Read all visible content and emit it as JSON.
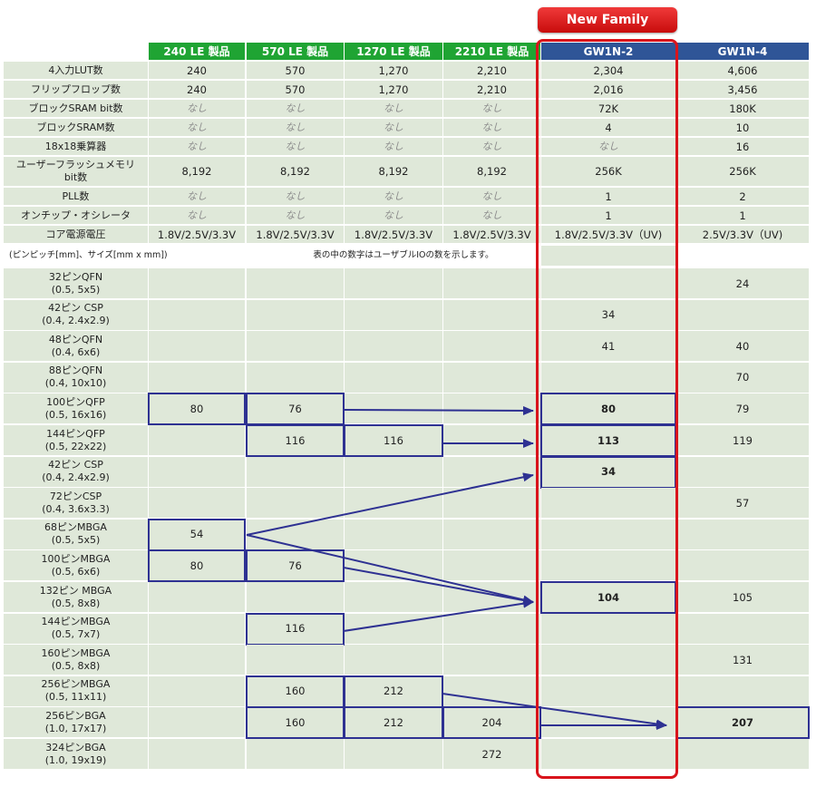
{
  "badge": "New Family",
  "columns": [
    "240 LE 製品",
    "570 LE 製品",
    "1270 LE 製品",
    "2210 LE 製品",
    "GW1N-2",
    "GW1N-4"
  ],
  "spec_rows": [
    {
      "label": "4入力LUT数",
      "values": [
        "240",
        "570",
        "1,270",
        "2,210",
        "2,304",
        "4,606"
      ]
    },
    {
      "label": "フリップフロップ数",
      "values": [
        "240",
        "570",
        "1,270",
        "2,210",
        "2,016",
        "3,456"
      ]
    },
    {
      "label": "ブロックSRAM bit数",
      "values": [
        "なし",
        "なし",
        "なし",
        "なし",
        "72K",
        "180K"
      ]
    },
    {
      "label": "ブロックSRAM数",
      "values": [
        "なし",
        "なし",
        "なし",
        "なし",
        "4",
        "10"
      ]
    },
    {
      "label": "18x18乗算器",
      "values": [
        "なし",
        "なし",
        "なし",
        "なし",
        "なし",
        "16"
      ]
    },
    {
      "label": "ユーザーフラッシュメモリ\nbit数",
      "values": [
        "8,192",
        "8,192",
        "8,192",
        "8,192",
        "256K",
        "256K"
      ]
    },
    {
      "label": "PLL数",
      "values": [
        "なし",
        "なし",
        "なし",
        "なし",
        "1",
        "2"
      ]
    },
    {
      "label": "オンチップ・オシレータ",
      "values": [
        "なし",
        "なし",
        "なし",
        "なし",
        "1",
        "1"
      ]
    },
    {
      "label": "コア電源電圧",
      "values": [
        "1.8V/2.5V/3.3V",
        "1.8V/2.5V/3.3V",
        "1.8V/2.5V/3.3V",
        "1.8V/2.5V/3.3V",
        "1.8V/2.5V/3.3V（UV)",
        "2.5V/3.3V（UV)"
      ]
    }
  ],
  "notes": {
    "left": "(ピンピッチ[mm]、サイズ[mm x mm])",
    "center": "表の中の数字はユーザブルIOの数を示します。"
  },
  "package_rows": [
    {
      "label": "32ピンQFN\n(0.5, 5x5)",
      "values": [
        "",
        "",
        "",
        "",
        "",
        "24"
      ]
    },
    {
      "label": "42ピン CSP\n(0.4, 2.4x2.9)",
      "values": [
        "",
        "",
        "",
        "",
        "34",
        ""
      ]
    },
    {
      "label": "48ピンQFN\n(0.4, 6x6)",
      "values": [
        "",
        "",
        "",
        "",
        "41",
        "40"
      ]
    },
    {
      "label": "88ピンQFN\n(0.4, 10x10)",
      "values": [
        "",
        "",
        "",
        "",
        "",
        "70"
      ]
    },
    {
      "label": "100ピンQFP\n(0.5, 16x16)",
      "values": [
        "80",
        "76",
        "",
        "",
        "80",
        "79"
      ]
    },
    {
      "label": "144ピンQFP\n(0.5, 22x22)",
      "values": [
        "",
        "116",
        "116",
        "",
        "113",
        "119"
      ]
    },
    {
      "label": "42ピン CSP\n(0.4, 2.4x2.9)",
      "values": [
        "",
        "",
        "",
        "",
        "34",
        ""
      ]
    },
    {
      "label": "72ピンCSP\n(0.4, 3.6x3.3)",
      "values": [
        "",
        "",
        "",
        "",
        "",
        "57"
      ]
    },
    {
      "label": "68ピンMBGA\n(0.5, 5x5)",
      "values": [
        "54",
        "",
        "",
        "",
        "",
        ""
      ]
    },
    {
      "label": "100ピンMBGA\n(0.5, 6x6)",
      "values": [
        "80",
        "76",
        "",
        "",
        "",
        ""
      ]
    },
    {
      "label": "132ピン MBGA\n(0.5, 8x8)",
      "values": [
        "",
        "",
        "",
        "",
        "104",
        "105"
      ]
    },
    {
      "label": "144ピンMBGA\n(0.5, 7x7)",
      "values": [
        "",
        "116",
        "",
        "",
        "",
        ""
      ]
    },
    {
      "label": "160ピンMBGA\n(0.5, 8x8)",
      "values": [
        "",
        "",
        "",
        "",
        "",
        "131"
      ]
    },
    {
      "label": "256ピンMBGA\n(0.5, 11x11)",
      "values": [
        "",
        "160",
        "212",
        "",
        "",
        ""
      ]
    },
    {
      "label": "256ピンBGA\n(1.0, 17x17)",
      "values": [
        "",
        "160",
        "212",
        "204",
        "",
        "207"
      ]
    },
    {
      "label": "324ピンBGA\n(1.0, 19x19)",
      "values": [
        "",
        "",
        "",
        "272",
        "",
        ""
      ]
    }
  ]
}
